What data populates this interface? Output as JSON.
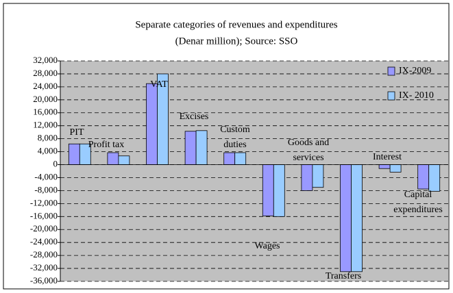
{
  "chart_data": {
    "type": "bar",
    "title": "Separate categories of revenues and expenditures",
    "subtitle": "(Denar million); Source: SSO",
    "categories": [
      "PIT",
      "Profit tax",
      "VAT",
      "Excises",
      "Custom duties",
      "Wages",
      "Goods and services",
      "Transfers",
      "Interest",
      "Capital expenditures"
    ],
    "series": [
      {
        "name": "IX-2009",
        "color": "#9999ff",
        "values": [
          6400,
          3700,
          25000,
          10300,
          3700,
          -15800,
          -8000,
          -33000,
          -1200,
          -7500
        ]
      },
      {
        "name": "IX- 2010",
        "color": "#99ccff",
        "values": [
          6400,
          2700,
          28000,
          10500,
          3700,
          -16000,
          -7000,
          -33000,
          -2300,
          -8200
        ]
      }
    ],
    "ylim": [
      -36000,
      32000
    ],
    "yticks": [
      {
        "value": 32000,
        "label": "32,000"
      },
      {
        "value": 28000,
        "label": "28,000"
      },
      {
        "value": 24000,
        "label": "24,000"
      },
      {
        "value": 20000,
        "label": "20,000"
      },
      {
        "value": 16000,
        "label": "16,000"
      },
      {
        "value": 12000,
        "label": "12,000"
      },
      {
        "value": 8000,
        "label": "8,000"
      },
      {
        "value": 4000,
        "label": "4,000"
      },
      0,
      {
        "value": -4000,
        "label": "-4,000"
      },
      {
        "value": -8000,
        "label": "-8,000"
      },
      {
        "value": -12000,
        "label": "-12,000"
      },
      {
        "value": -16000,
        "label": "-16,000"
      },
      {
        "value": -20000,
        "label": "-20,000"
      },
      {
        "value": -24000,
        "label": "-24,000"
      },
      {
        "value": -28000,
        "label": "-28,000"
      },
      {
        "value": -32000,
        "label": "-32,000"
      },
      {
        "value": -36000,
        "label": "-36,000"
      }
    ],
    "grid": true,
    "legend": "top-right",
    "plot_background": "#c0c0c0"
  }
}
